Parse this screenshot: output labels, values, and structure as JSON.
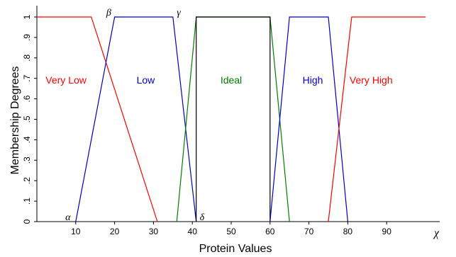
{
  "chart_data": {
    "type": "line",
    "xlabel": "Protein Values",
    "ylabel": "Membership Degrees",
    "x_axis_symbol": "χ",
    "xlim": [
      0,
      100
    ],
    "ylim": [
      0,
      1
    ],
    "x_ticks": [
      10,
      20,
      30,
      40,
      50,
      60,
      70,
      80,
      90
    ],
    "x_tick_labels": [
      "10",
      "20",
      "30",
      "40",
      "50",
      "60",
      "70",
      "80",
      "90"
    ],
    "y_ticks": [
      0,
      0.1,
      0.2,
      0.3,
      0.4,
      0.5,
      0.6,
      0.7,
      0.8,
      0.9,
      1
    ],
    "y_tick_labels": [
      "0",
      ".1",
      ".2",
      ".3",
      ".4",
      ".5",
      ".6",
      ".7",
      ".8",
      ".9",
      "1"
    ],
    "grid": false,
    "legend": "none",
    "series": [
      {
        "name": "Very Low",
        "color": "#ff0000",
        "x": [
          0,
          14,
          31
        ],
        "y": [
          1,
          1,
          0
        ],
        "label_x": 7.5,
        "label_y": 0.675
      },
      {
        "name": "Low",
        "color": "#0000cc",
        "x": [
          10,
          20,
          35,
          41
        ],
        "y": [
          0,
          1,
          1,
          0
        ],
        "label_x": 28,
        "label_y": 0.675
      },
      {
        "name": "Ideal",
        "color": "#008000",
        "x": [
          36,
          41,
          60,
          65
        ],
        "y": [
          0,
          1,
          1,
          0
        ],
        "label_x": 50,
        "label_y": 0.675
      },
      {
        "name": "",
        "color": "#000000",
        "x": [
          41,
          41,
          60,
          60
        ],
        "y": [
          0,
          1,
          1,
          0
        ]
      },
      {
        "name": "High",
        "color": "#0000cc",
        "x": [
          60,
          65,
          75,
          80
        ],
        "y": [
          0,
          1,
          1,
          0
        ],
        "label_x": 71,
        "label_y": 0.675
      },
      {
        "name": "Very High",
        "color": "#ff0000",
        "x": [
          75,
          81,
          100
        ],
        "y": [
          0,
          1,
          1
        ],
        "label_x": 86,
        "label_y": 0.675
      }
    ],
    "annotations": [
      {
        "text": "α",
        "x": 8,
        "y": 0.0
      },
      {
        "text": "β",
        "x": 18.5,
        "y": 1.0
      },
      {
        "text": "γ",
        "x": 36.5,
        "y": 1.0
      },
      {
        "text": "δ",
        "x": 42.5,
        "y": 0.0
      }
    ]
  }
}
